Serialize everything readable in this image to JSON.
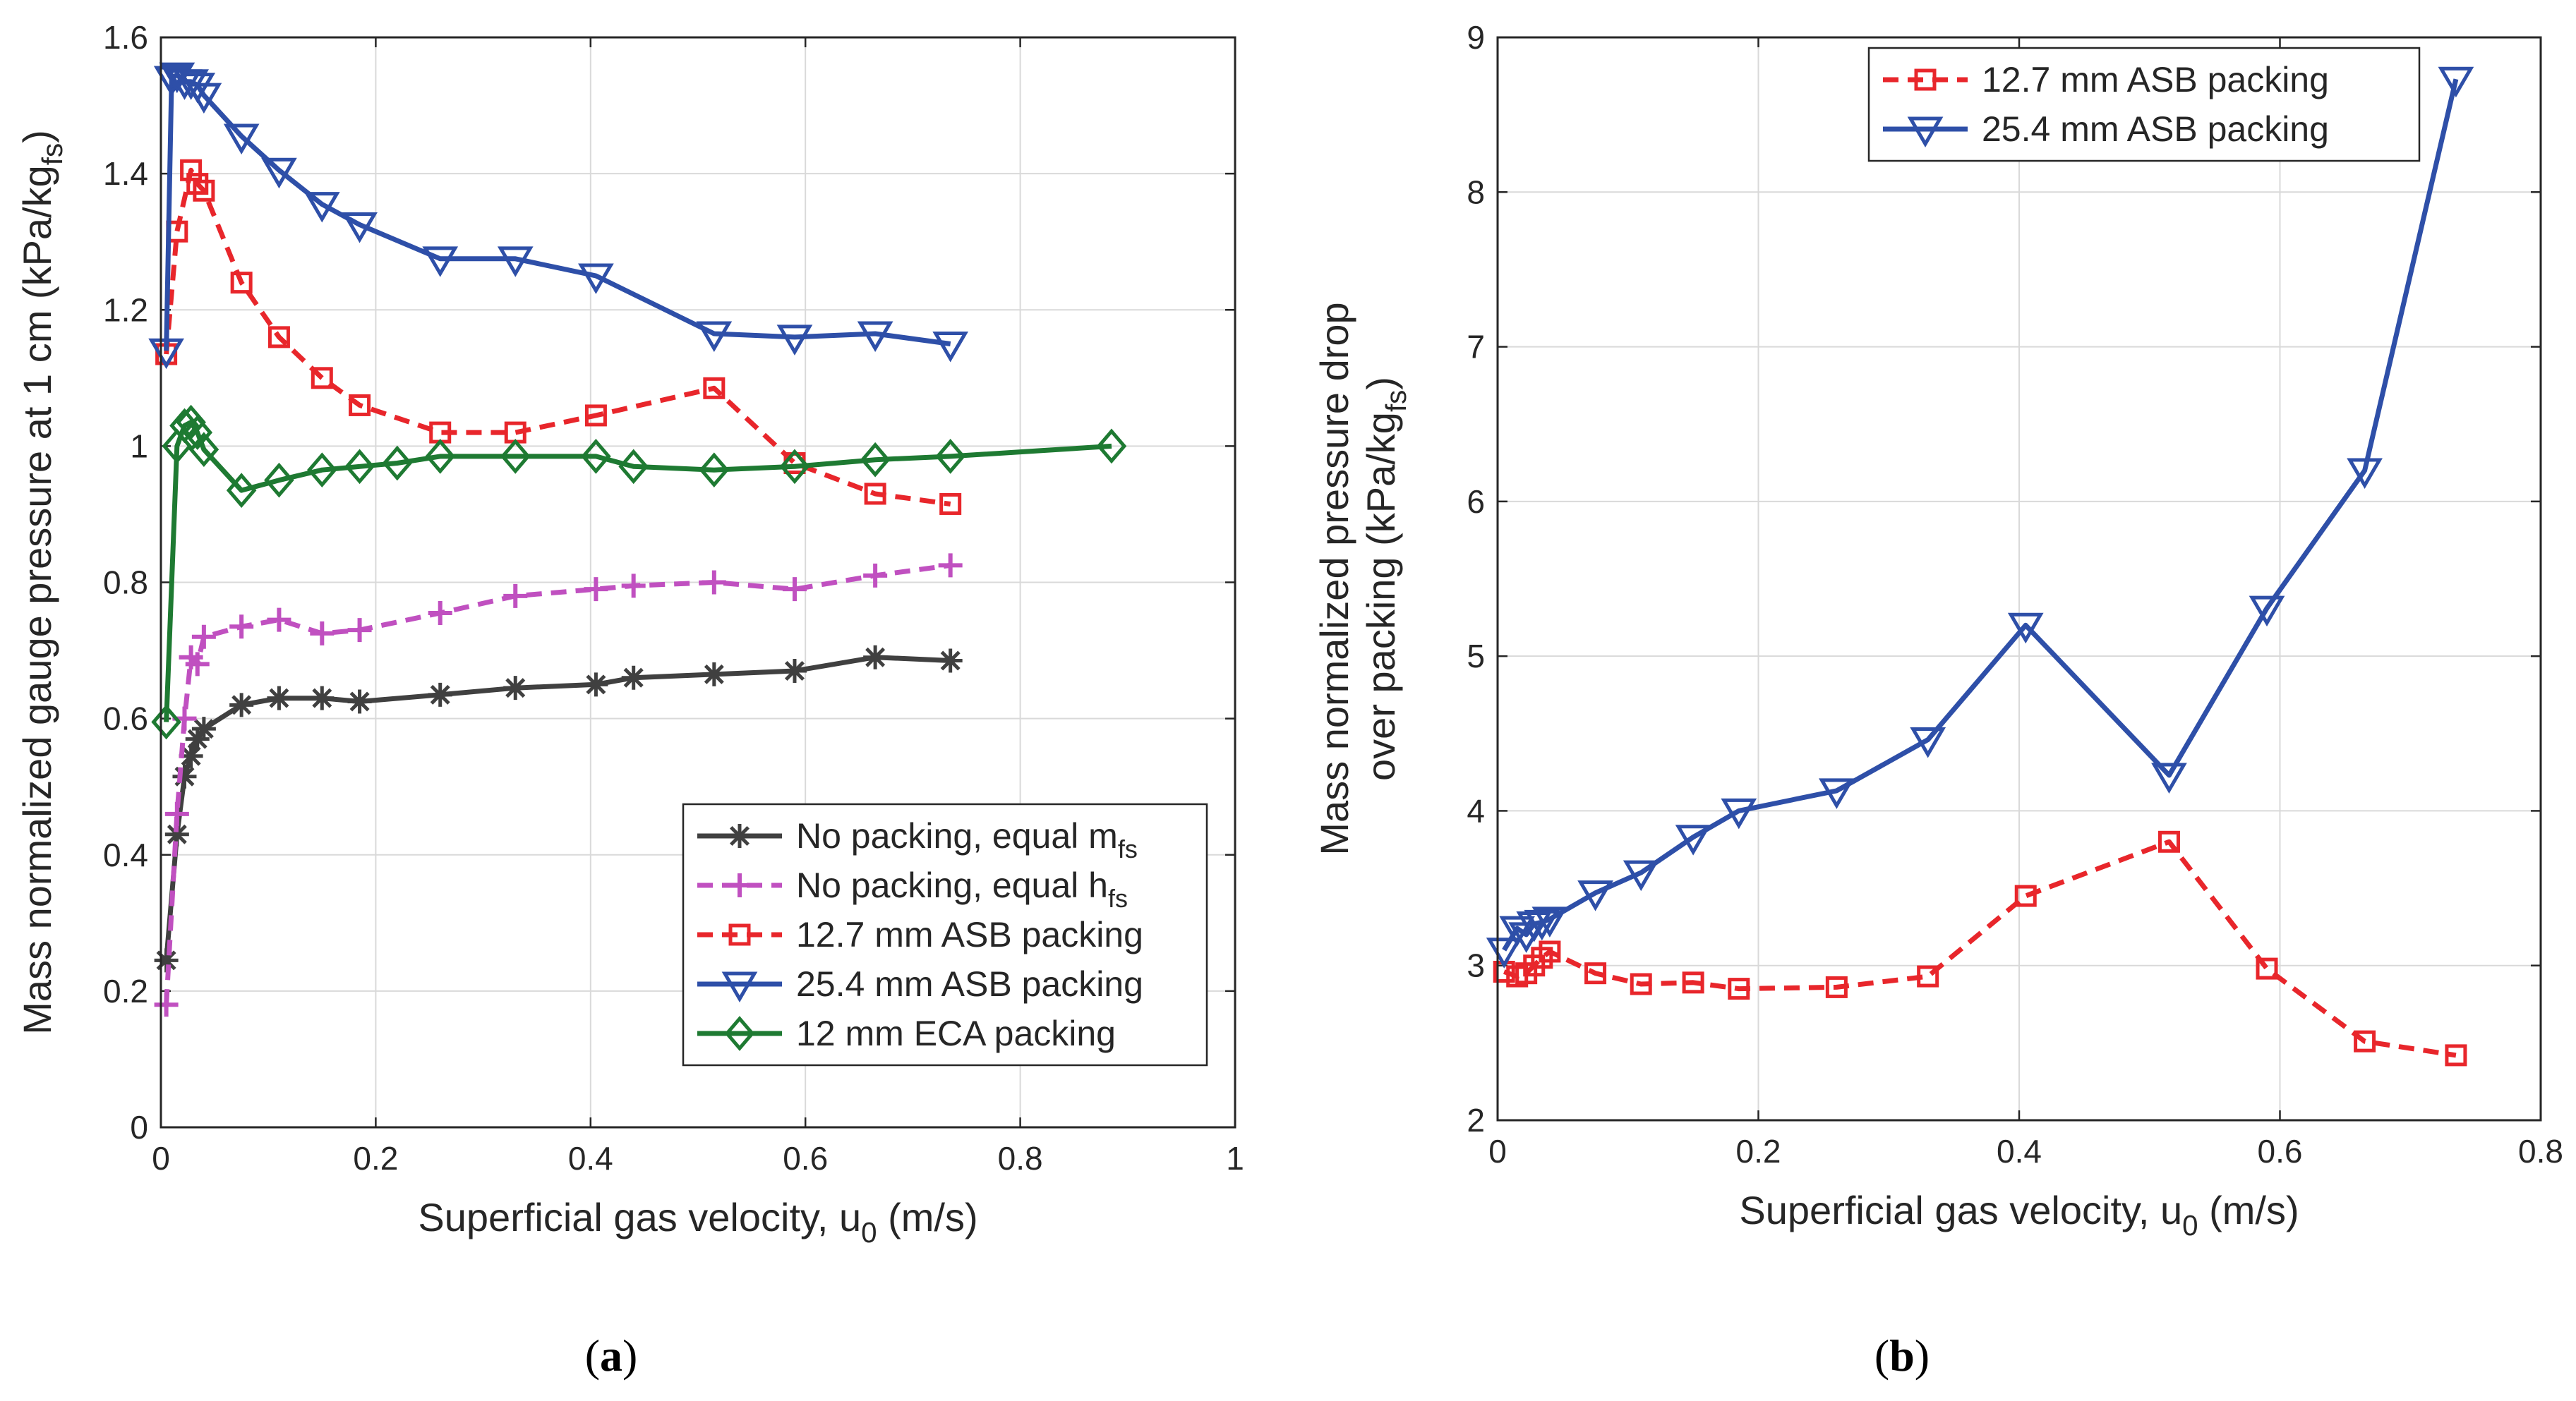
{
  "chart_data": [
    {
      "type": "line",
      "panel_label": "a",
      "xlabel": {
        "main": "Superficial gas velocity, u",
        "sub": "0",
        "post": " (m/s)"
      },
      "ylabel": {
        "main": "Mass normalized gauge pressure at 1 cm (kPa/kg",
        "sub": "fs",
        "post": ")"
      },
      "xlim": [
        0,
        1
      ],
      "ylim": [
        0,
        1.6
      ],
      "xticks": [
        0,
        0.2,
        0.4,
        0.6,
        0.8,
        1
      ],
      "xtick_labels": [
        "0",
        "0.2",
        "0.4",
        "0.6",
        "0.8",
        "1"
      ],
      "yticks": [
        0,
        0.2,
        0.4,
        0.6,
        0.8,
        1,
        1.2,
        1.4,
        1.6
      ],
      "ytick_labels": [
        "0",
        "0.2",
        "0.4",
        "0.6",
        "0.8",
        "1",
        "1.2",
        "1.4",
        "1.6"
      ],
      "grid": true,
      "legend_position": "bottom-right",
      "series": [
        {
          "name": "No packing, equal m",
          "name_sub": "fs",
          "color": "#404040",
          "line": "solid",
          "marker": "asterisk",
          "x": [
            0.005,
            0.015,
            0.022,
            0.028,
            0.034,
            0.04,
            0.075,
            0.11,
            0.15,
            0.185,
            0.26,
            0.33,
            0.405,
            0.44,
            0.515,
            0.59,
            0.665,
            0.735
          ],
          "y": [
            0.245,
            0.43,
            0.515,
            0.545,
            0.57,
            0.585,
            0.62,
            0.63,
            0.63,
            0.625,
            0.635,
            0.645,
            0.65,
            0.66,
            0.665,
            0.67,
            0.69,
            0.685
          ]
        },
        {
          "name": "No packing, equal h",
          "name_sub": "fs",
          "color": "#c050c0",
          "line": "dashed",
          "marker": "plus",
          "x": [
            0.005,
            0.015,
            0.022,
            0.028,
            0.034,
            0.04,
            0.075,
            0.11,
            0.15,
            0.185,
            0.26,
            0.33,
            0.405,
            0.44,
            0.515,
            0.59,
            0.665,
            0.735
          ],
          "y": [
            0.18,
            0.46,
            0.6,
            0.69,
            0.68,
            0.72,
            0.735,
            0.745,
            0.725,
            0.73,
            0.755,
            0.78,
            0.79,
            0.795,
            0.8,
            0.79,
            0.81,
            0.825
          ]
        },
        {
          "name": "12.7 mm ASB packing",
          "name_sub": "",
          "color": "#e8262b",
          "line": "dashed",
          "marker": "square",
          "x": [
            0.005,
            0.015,
            0.028,
            0.034,
            0.04,
            0.075,
            0.11,
            0.15,
            0.185,
            0.26,
            0.33,
            0.405,
            0.515,
            0.59,
            0.665,
            0.735
          ],
          "y": [
            1.135,
            1.315,
            1.405,
            1.385,
            1.375,
            1.24,
            1.16,
            1.1,
            1.06,
            1.02,
            1.02,
            1.045,
            1.085,
            0.975,
            0.93,
            0.915
          ]
        },
        {
          "name": "25.4 mm ASB packing",
          "name_sub": "",
          "color": "#2e4fa8",
          "line": "solid",
          "marker": "triangle-down",
          "x": [
            0.005,
            0.01,
            0.015,
            0.022,
            0.028,
            0.034,
            0.04,
            0.075,
            0.11,
            0.15,
            0.185,
            0.26,
            0.33,
            0.405,
            0.515,
            0.59,
            0.665,
            0.735
          ],
          "y": [
            1.14,
            1.54,
            1.545,
            1.535,
            1.535,
            1.53,
            1.515,
            1.455,
            1.405,
            1.355,
            1.325,
            1.275,
            1.275,
            1.25,
            1.165,
            1.16,
            1.165,
            1.15
          ]
        },
        {
          "name": "12 mm ECA packing",
          "name_sub": "",
          "color": "#1e7a32",
          "line": "solid",
          "marker": "diamond",
          "x": [
            0.005,
            0.015,
            0.022,
            0.028,
            0.034,
            0.04,
            0.075,
            0.11,
            0.15,
            0.185,
            0.22,
            0.26,
            0.33,
            0.405,
            0.44,
            0.515,
            0.59,
            0.665,
            0.735,
            0.885
          ],
          "y": [
            0.595,
            1.0,
            1.03,
            1.035,
            1.02,
            0.995,
            0.935,
            0.95,
            0.965,
            0.97,
            0.975,
            0.985,
            0.985,
            0.985,
            0.97,
            0.965,
            0.97,
            0.98,
            0.985,
            1.0
          ]
        }
      ]
    },
    {
      "type": "line",
      "panel_label": "b",
      "xlabel": {
        "main": "Superficial gas velocity, u",
        "sub": "0",
        "post": " (m/s)"
      },
      "ylabel_line1": "Mass normalized pressure drop",
      "ylabel_line2": {
        "main": "over packing (kPa/kg",
        "sub": "fs",
        "post": ")"
      },
      "xlim": [
        0,
        0.8
      ],
      "ylim": [
        2,
        9
      ],
      "xticks": [
        0,
        0.2,
        0.4,
        0.6,
        0.8
      ],
      "xtick_labels": [
        "0",
        "0.2",
        "0.4",
        "0.6",
        "0.8"
      ],
      "yticks": [
        2,
        3,
        4,
        5,
        6,
        7,
        8,
        9
      ],
      "ytick_labels": [
        "2",
        "3",
        "4",
        "5",
        "6",
        "7",
        "8",
        "9"
      ],
      "grid": true,
      "legend_position": "top-right",
      "series": [
        {
          "name": "12.7 mm ASB packing",
          "name_sub": "",
          "color": "#e8262b",
          "line": "dashed",
          "marker": "square",
          "x": [
            0.005,
            0.015,
            0.022,
            0.028,
            0.034,
            0.04,
            0.075,
            0.11,
            0.15,
            0.185,
            0.26,
            0.33,
            0.405,
            0.515,
            0.59,
            0.665,
            0.735
          ],
          "y": [
            2.96,
            2.93,
            2.95,
            3.0,
            3.05,
            3.09,
            2.95,
            2.88,
            2.89,
            2.85,
            2.86,
            2.93,
            3.45,
            3.8,
            2.98,
            2.51,
            2.42
          ]
        },
        {
          "name": "25.4 mm ASB packing",
          "name_sub": "",
          "color": "#2e4fa8",
          "line": "solid",
          "marker": "triangle-down",
          "x": [
            0.005,
            0.015,
            0.022,
            0.028,
            0.034,
            0.04,
            0.075,
            0.11,
            0.15,
            0.185,
            0.26,
            0.33,
            0.405,
            0.515,
            0.59,
            0.665,
            0.735
          ],
          "y": [
            3.1,
            3.24,
            3.2,
            3.27,
            3.28,
            3.3,
            3.47,
            3.6,
            3.83,
            4.0,
            4.13,
            4.46,
            5.2,
            4.23,
            5.31,
            6.2,
            8.73
          ]
        }
      ]
    }
  ]
}
